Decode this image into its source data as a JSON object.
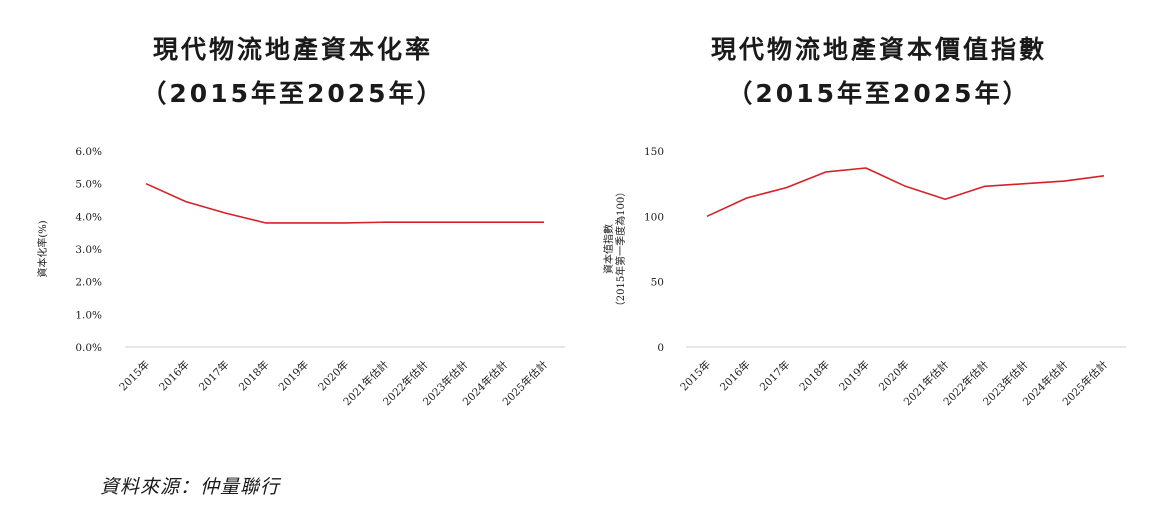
{
  "charts": [
    {
      "title_line1": "現代物流地產資本化率",
      "title_line2": "（2015年至2025年）"
    },
    {
      "title_line1": "現代物流地產資本價值指數",
      "title_line2": "（2015年至2025年）"
    }
  ],
  "chart_data": [
    {
      "type": "line",
      "title": "現代物流地產資本化率（2015年至2025年）",
      "categories": [
        "2015年",
        "2016年",
        "2017年",
        "2018年",
        "2019年",
        "2020年",
        "2021年估計",
        "2022年估計",
        "2023年估計",
        "2024年估計",
        "2025年估計"
      ],
      "series": [
        {
          "values": [
            5.0,
            4.45,
            4.1,
            3.8,
            3.8,
            3.8,
            3.82,
            3.82,
            3.82,
            3.82,
            3.82
          ]
        }
      ],
      "yticks": [
        "0.0%",
        "1.0%",
        "2.0%",
        "3.0%",
        "4.0%",
        "5.0%",
        "6.0%"
      ],
      "ylim": [
        0,
        6
      ],
      "ylabel_lines": [
        "資本化率(%)"
      ],
      "line_color": "#d62128",
      "grid": false
    },
    {
      "type": "line",
      "title": "現代物流地產資本價值指數（2015年至2025年）",
      "categories": [
        "2015年",
        "2016年",
        "2017年",
        "2018年",
        "2019年",
        "2020年",
        "2021年估計",
        "2022年估計",
        "2023年估計",
        "2024年估計",
        "2025年估計"
      ],
      "series": [
        {
          "values": [
            100,
            114,
            122,
            134,
            137,
            123,
            113,
            123,
            125,
            127,
            131
          ]
        }
      ],
      "yticks": [
        "0",
        "50",
        "100",
        "150"
      ],
      "ylim": [
        0,
        150
      ],
      "ylabel_lines": [
        "資本值指數",
        "（2015年第一季度為100）"
      ],
      "line_color": "#d62128",
      "grid": false
    }
  ],
  "source": {
    "text": "資料來源：仲量聯行"
  }
}
